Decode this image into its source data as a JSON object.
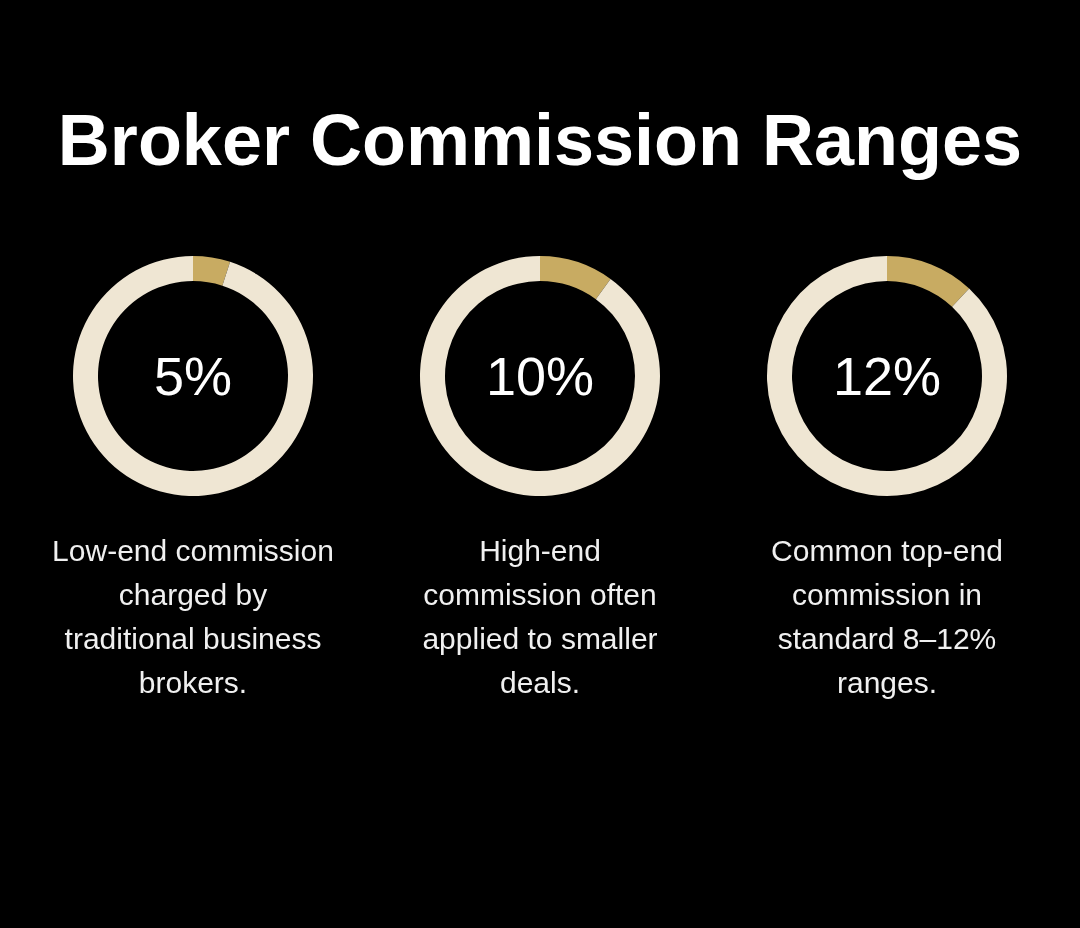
{
  "chart_data": [
    {
      "type": "other",
      "title": "Broker Commission Ranges"
    },
    {
      "type": "donut",
      "categories": [
        null,
        null
      ],
      "values": [
        5,
        95
      ],
      "colors": [
        "#c8ab62",
        "#efe6d3"
      ],
      "value_labels": [
        "5%",
        null
      ],
      "annotations": [
        "Low-end commission charged by traditional business brokers."
      ]
    },
    {
      "type": "donut",
      "categories": [
        null,
        null
      ],
      "values": [
        10,
        90
      ],
      "colors": [
        "#c8ab62",
        "#efe6d3"
      ],
      "value_labels": [
        "10%",
        null
      ],
      "annotations": [
        "High-end commission often applied to smaller deals."
      ]
    },
    {
      "type": "donut",
      "categories": [
        null,
        null
      ],
      "values": [
        12,
        88
      ],
      "colors": [
        "#c8ab62",
        "#efe6d3"
      ],
      "value_labels": [
        "12%",
        null
      ],
      "annotations": [
        "Common top-end commission in standard 8–12% ranges."
      ]
    }
  ]
}
